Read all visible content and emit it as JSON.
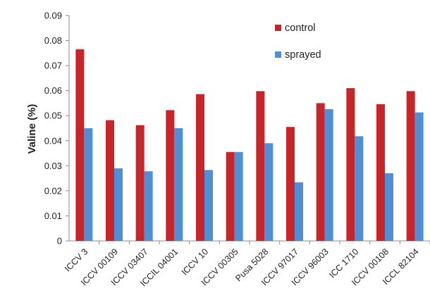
{
  "chart_data": {
    "type": "bar",
    "title": "",
    "xlabel": "",
    "ylabel": "Valine (%)",
    "ylim": [
      0,
      0.09
    ],
    "yticks": [
      "0",
      "0.01",
      "0.02",
      "0.03",
      "0.04",
      "0.05",
      "0.06",
      "0.07",
      "0.08",
      "0.09"
    ],
    "grid": false,
    "legend_position": "top-right",
    "categories": [
      "ICCV 3",
      "ICCV 00109",
      "ICCV 03407",
      "ICCIL 04001",
      "ICCV 10",
      "ICCV 00305",
      "Pusa 5028",
      "ICCV 97017",
      "ICCV 96003",
      "ICC 1710",
      "ICCV 00108",
      "ICCL 82104"
    ],
    "series": [
      {
        "name": "control",
        "color": "#c8252a",
        "values": [
          0.0765,
          0.0482,
          0.0462,
          0.0522,
          0.0586,
          0.0355,
          0.0598,
          0.0455,
          0.055,
          0.061,
          0.0546,
          0.0598
        ]
      },
      {
        "name": "sprayed",
        "color": "#4f8fd6",
        "values": [
          0.045,
          0.029,
          0.0278,
          0.045,
          0.0283,
          0.0355,
          0.039,
          0.0234,
          0.0526,
          0.0418,
          0.027,
          0.0513
        ]
      }
    ]
  }
}
